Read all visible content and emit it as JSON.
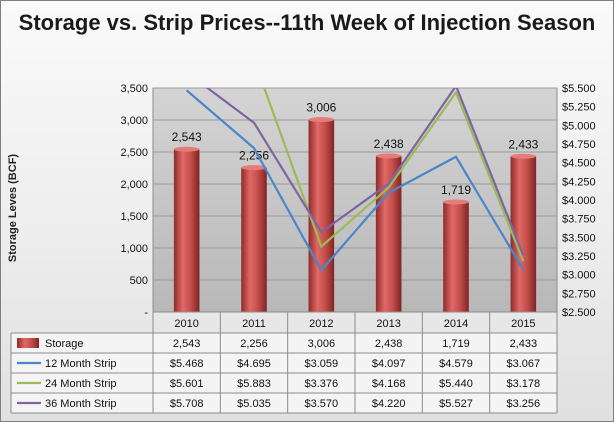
{
  "chart_data": {
    "type": "bar",
    "title": "Storage vs. Strip Prices--11th Week of Injection Season",
    "ylabel": "Storage Leves (BCF)",
    "categories": [
      "2010",
      "2011",
      "2012",
      "2013",
      "2014",
      "2015"
    ],
    "ylim": [
      0,
      3500
    ],
    "y_ticks": [
      "-",
      "500",
      "1,000",
      "1,500",
      "2,000",
      "2,500",
      "3,000",
      "3,500"
    ],
    "y2lim": [
      2.5,
      5.5
    ],
    "y2_ticks": [
      "$2.500",
      "$2.750",
      "$3.000",
      "$3.250",
      "$3.500",
      "$3.750",
      "$4.000",
      "$4.250",
      "$4.500",
      "$4.750",
      "$5.000",
      "$5.250",
      "$5.500"
    ],
    "series": [
      {
        "name": "Storage",
        "kind": "bar",
        "axis": "left",
        "color": "#c0504d",
        "values": [
          2543,
          2256,
          3006,
          2438,
          1719,
          2433
        ],
        "labels": [
          "2,543",
          "2,256",
          "3,006",
          "2,438",
          "1,719",
          "2,433"
        ]
      },
      {
        "name": "12 Month Strip",
        "kind": "line",
        "axis": "right",
        "color": "#4a86c8",
        "values": [
          5.468,
          4.695,
          3.059,
          4.097,
          4.579,
          3.067
        ],
        "labels": [
          "$5.468",
          "$4.695",
          "$3.059",
          "$4.097",
          "$4.579",
          "$3.067"
        ]
      },
      {
        "name": "24 Month Strip",
        "kind": "line",
        "axis": "right",
        "color": "#9bbb59",
        "values": [
          5.601,
          5.883,
          3.376,
          4.168,
          5.44,
          3.178
        ],
        "labels": [
          "$5.601",
          "$5.883",
          "$3.376",
          "$4.168",
          "$5.440",
          "$3.178"
        ]
      },
      {
        "name": "36 Month Strip",
        "kind": "line",
        "axis": "right",
        "color": "#8064a2",
        "values": [
          5.708,
          5.035,
          3.57,
          4.22,
          5.527,
          3.256
        ],
        "labels": [
          "$5.708",
          "$5.035",
          "$3.570",
          "$4.220",
          "$5.527",
          "$3.256"
        ]
      }
    ],
    "grid": true,
    "legend": "data-table"
  }
}
